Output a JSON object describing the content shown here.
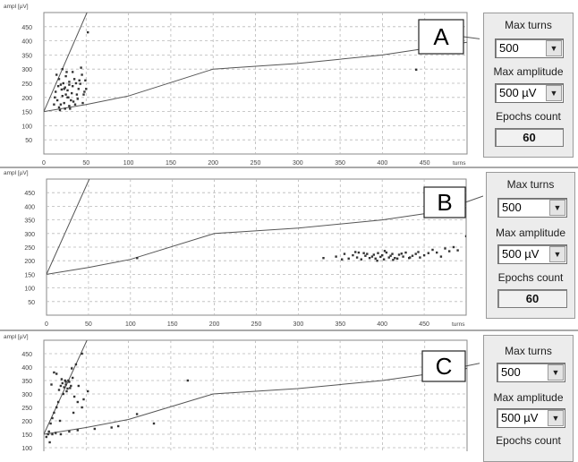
{
  "panels": [
    {
      "letter": "A",
      "y_unit": "ampl [µV]",
      "x_unit": "turns",
      "y_ticks": [
        "450",
        "400",
        "350",
        "300",
        "250",
        "200",
        "150",
        "100",
        "50"
      ],
      "x_ticks": [
        "0",
        "50",
        "100",
        "150",
        "200",
        "250",
        "300",
        "350",
        "400",
        "450"
      ]
    },
    {
      "letter": "B",
      "y_unit": "ampl [µV]",
      "x_unit": "turns",
      "y_ticks": [
        "450",
        "400",
        "350",
        "300",
        "250",
        "200",
        "150",
        "100",
        "50"
      ],
      "x_ticks": [
        "0",
        "50",
        "100",
        "150",
        "200",
        "250",
        "300",
        "350",
        "400",
        "450"
      ]
    },
    {
      "letter": "C",
      "y_unit": "ampl [µV]",
      "x_unit": "",
      "y_ticks": [
        "450",
        "400",
        "350",
        "300",
        "250",
        "200",
        "150",
        "100"
      ],
      "x_ticks": []
    }
  ],
  "controls": [
    {
      "max_turns_label": "Max turns",
      "max_turns_value": "500",
      "max_amp_label": "Max amplitude",
      "max_amp_value": "500 µV",
      "epochs_label": "Epochs count",
      "epochs_value": "60"
    },
    {
      "max_turns_label": "Max turns",
      "max_turns_value": "500",
      "max_amp_label": "Max amplitude",
      "max_amp_value": "500 µV",
      "epochs_label": "Epochs count",
      "epochs_value": "60"
    },
    {
      "max_turns_label": "Max turns",
      "max_turns_value": "500",
      "max_amp_label": "Max amplitude",
      "max_amp_value": "500 µV",
      "epochs_label": "Epochs count",
      "epochs_value": ""
    }
  ],
  "chart_data": [
    {
      "type": "scatter",
      "title": "A",
      "xlabel": "turns",
      "ylabel": "ampl [µV]",
      "xlim": [
        0,
        500
      ],
      "ylim": [
        0,
        500
      ],
      "grid": true,
      "lines": [
        {
          "points": [
            [
              0,
              150
            ],
            [
              50,
              175
            ],
            [
              100,
              205
            ],
            [
              200,
              300
            ],
            [
              300,
              320
            ],
            [
              400,
              350
            ],
            [
              500,
              395
            ]
          ]
        },
        {
          "points": [
            [
              0,
              150
            ],
            [
              51,
              500
            ]
          ]
        }
      ],
      "points": [
        [
          15,
          280
        ],
        [
          18,
          265
        ],
        [
          20,
          245
        ],
        [
          22,
          300
        ],
        [
          24,
          230
        ],
        [
          26,
          210
        ],
        [
          28,
          200
        ],
        [
          30,
          255
        ],
        [
          32,
          190
        ],
        [
          34,
          240
        ],
        [
          20,
          175
        ],
        [
          18,
          165
        ],
        [
          25,
          160
        ],
        [
          30,
          170
        ],
        [
          35,
          185
        ],
        [
          40,
          195
        ],
        [
          42,
          260
        ],
        [
          45,
          280
        ],
        [
          48,
          220
        ],
        [
          50,
          230
        ],
        [
          22,
          205
        ],
        [
          28,
          225
        ],
        [
          33,
          215
        ],
        [
          38,
          250
        ],
        [
          16,
          190
        ],
        [
          24,
          180
        ],
        [
          44,
          305
        ],
        [
          12,
          175
        ],
        [
          27,
          290
        ],
        [
          36,
          265
        ],
        [
          19,
          155
        ],
        [
          47,
          210
        ],
        [
          31,
          160
        ],
        [
          14,
          220
        ],
        [
          26,
          275
        ],
        [
          41,
          230
        ],
        [
          23,
          250
        ],
        [
          29,
          200
        ],
        [
          37,
          175
        ],
        [
          17,
          240
        ],
        [
          21,
          228
        ],
        [
          39,
          210
        ],
        [
          43,
          248
        ],
        [
          46,
          180
        ],
        [
          49,
          260
        ],
        [
          13,
          200
        ],
        [
          34,
          290
        ],
        [
          25,
          235
        ],
        [
          30,
          245
        ],
        [
          440,
          298
        ],
        [
          52,
          430
        ]
      ]
    },
    {
      "type": "scatter",
      "title": "B",
      "xlabel": "turns",
      "ylabel": "ampl [µV]",
      "xlim": [
        0,
        500
      ],
      "ylim": [
        0,
        500
      ],
      "grid": true,
      "lines": [
        {
          "points": [
            [
              0,
              150
            ],
            [
              50,
              175
            ],
            [
              100,
              205
            ],
            [
              200,
              300
            ],
            [
              300,
              320
            ],
            [
              400,
              350
            ],
            [
              500,
              395
            ]
          ]
        },
        {
          "points": [
            [
              0,
              150
            ],
            [
              51,
              500
            ]
          ]
        }
      ],
      "points": [
        [
          108,
          210
        ],
        [
          330,
          210
        ],
        [
          345,
          215
        ],
        [
          355,
          225
        ],
        [
          360,
          208
        ],
        [
          365,
          220
        ],
        [
          370,
          212
        ],
        [
          372,
          230
        ],
        [
          375,
          205
        ],
        [
          380,
          218
        ],
        [
          382,
          225
        ],
        [
          385,
          210
        ],
        [
          388,
          215
        ],
        [
          390,
          222
        ],
        [
          392,
          208
        ],
        [
          395,
          228
        ],
        [
          398,
          214
        ],
        [
          400,
          220
        ],
        [
          402,
          205
        ],
        [
          405,
          230
        ],
        [
          408,
          212
        ],
        [
          410,
          218
        ],
        [
          412,
          225
        ],
        [
          415,
          210
        ],
        [
          418,
          208
        ],
        [
          420,
          222
        ],
        [
          425,
          215
        ],
        [
          428,
          230
        ],
        [
          432,
          210
        ],
        [
          436,
          218
        ],
        [
          440,
          225
        ],
        [
          445,
          212
        ],
        [
          450,
          220
        ],
        [
          455,
          228
        ],
        [
          460,
          240
        ],
        [
          465,
          230
        ],
        [
          470,
          215
        ],
        [
          475,
          245
        ],
        [
          480,
          235
        ],
        [
          485,
          250
        ],
        [
          490,
          238
        ],
        [
          352,
          205
        ],
        [
          368,
          232
        ],
        [
          378,
          228
        ],
        [
          394,
          200
        ],
        [
          403,
          236
        ],
        [
          413,
          203
        ],
        [
          423,
          226
        ],
        [
          433,
          212
        ],
        [
          443,
          232
        ],
        [
          500,
          290
        ]
      ]
    },
    {
      "type": "scatter",
      "title": "C",
      "xlabel": "",
      "ylabel": "ampl [µV]",
      "xlim": [
        0,
        500
      ],
      "ylim": [
        50,
        500
      ],
      "grid": true,
      "lines": [
        {
          "points": [
            [
              0,
              150
            ],
            [
              50,
              175
            ],
            [
              100,
              205
            ],
            [
              200,
              300
            ],
            [
              300,
              320
            ],
            [
              400,
              350
            ],
            [
              500,
              395
            ]
          ]
        },
        {
          "points": [
            [
              0,
              150
            ],
            [
              51,
              500
            ]
          ]
        }
      ],
      "points": [
        [
          20,
          330
        ],
        [
          22,
          340
        ],
        [
          24,
          325
        ],
        [
          26,
          335
        ],
        [
          28,
          320
        ],
        [
          30,
          345
        ],
        [
          18,
          315
        ],
        [
          25,
          350
        ],
        [
          32,
          330
        ],
        [
          34,
          360
        ],
        [
          27,
          310
        ],
        [
          23,
          300
        ],
        [
          36,
          290
        ],
        [
          40,
          270
        ],
        [
          45,
          250
        ],
        [
          15,
          250
        ],
        [
          12,
          230
        ],
        [
          10,
          210
        ],
        [
          8,
          190
        ],
        [
          6,
          160
        ],
        [
          5,
          150
        ],
        [
          10,
          150
        ],
        [
          14,
          155
        ],
        [
          20,
          150
        ],
        [
          30,
          160
        ],
        [
          40,
          165
        ],
        [
          60,
          170
        ],
        [
          80,
          175
        ],
        [
          15,
          375
        ],
        [
          12,
          380
        ],
        [
          45,
          450
        ],
        [
          38,
          410
        ],
        [
          33,
          395
        ],
        [
          41,
          330
        ],
        [
          29,
          350
        ],
        [
          26,
          345
        ],
        [
          31,
          322
        ],
        [
          21,
          355
        ],
        [
          9,
          335
        ],
        [
          17,
          270
        ],
        [
          47,
          280
        ],
        [
          110,
          225
        ],
        [
          130,
          190
        ],
        [
          170,
          350
        ],
        [
          88,
          180
        ],
        [
          52,
          310
        ],
        [
          3,
          140
        ],
        [
          7,
          120
        ],
        [
          19,
          200
        ],
        [
          35,
          230
        ]
      ]
    }
  ]
}
